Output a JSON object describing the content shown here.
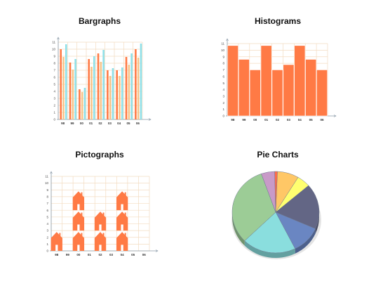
{
  "titles": {
    "bar": "Bargraphs",
    "hist": "Histograms",
    "picto": "Pictographs",
    "pie": "Pie Charts"
  },
  "colors": {
    "orange": "#ff7a45",
    "tan": "#f6c48a",
    "cyan": "#8fe0e8",
    "grid": "#f3dcc0",
    "axis": "#8a9aa8"
  },
  "chart_data": [
    {
      "type": "bar",
      "title": "Bargraphs",
      "categories": [
        "98",
        "99",
        "00",
        "01",
        "02",
        "03",
        "04",
        "05",
        "06"
      ],
      "yticks": [
        0,
        1,
        2,
        3,
        4,
        5,
        6,
        7,
        8,
        9,
        10,
        11
      ],
      "ylim": [
        0,
        11
      ],
      "series": [
        {
          "values": [
            10,
            8.1,
            4.3,
            8.6,
            9.4,
            7,
            7,
            8.9,
            10
          ]
        },
        {
          "values": [
            8.9,
            7.1,
            3.9,
            7.5,
            8.2,
            6.2,
            6.2,
            7.8,
            8.8
          ]
        },
        {
          "values": [
            10.7,
            8.6,
            4.5,
            9,
            9.9,
            7.3,
            7.4,
            9.4,
            10.8
          ]
        }
      ]
    },
    {
      "type": "bar",
      "title": "Histograms",
      "categories": [
        "98",
        "99",
        "00",
        "01",
        "02",
        "03",
        "04",
        "05",
        "06"
      ],
      "yticks": [
        0,
        1,
        2,
        3,
        4,
        5,
        6,
        7,
        8,
        9,
        10,
        11
      ],
      "ylim": [
        0,
        11
      ],
      "values": [
        10.7,
        8.6,
        7,
        10.7,
        7,
        7.8,
        10.7,
        8.6,
        7
      ]
    },
    {
      "type": "pictograph",
      "title": "Pictographs",
      "categories": [
        "98",
        "99",
        "00",
        "01",
        "02",
        "03",
        "04",
        "05",
        "06"
      ],
      "yticks": [
        0,
        1,
        2,
        3,
        4,
        5,
        6,
        7,
        8,
        9,
        10,
        11
      ],
      "ylim": [
        0,
        11
      ],
      "values": [
        3,
        0,
        9,
        0,
        6,
        0,
        9,
        0,
        0
      ]
    },
    {
      "type": "pie",
      "title": "Pie Charts",
      "slices": [
        {
          "value": 8,
          "color": "#ffc766"
        },
        {
          "value": 5,
          "color": "#ffff70"
        },
        {
          "value": 18,
          "color": "#636685"
        },
        {
          "value": 11,
          "color": "#6a86c2"
        },
        {
          "value": 20,
          "color": "#8adede"
        },
        {
          "value": 32,
          "color": "#9ccc96"
        },
        {
          "value": 5,
          "color": "#c89ac8"
        },
        {
          "value": 1,
          "color": "#ff6b4a"
        }
      ]
    }
  ]
}
